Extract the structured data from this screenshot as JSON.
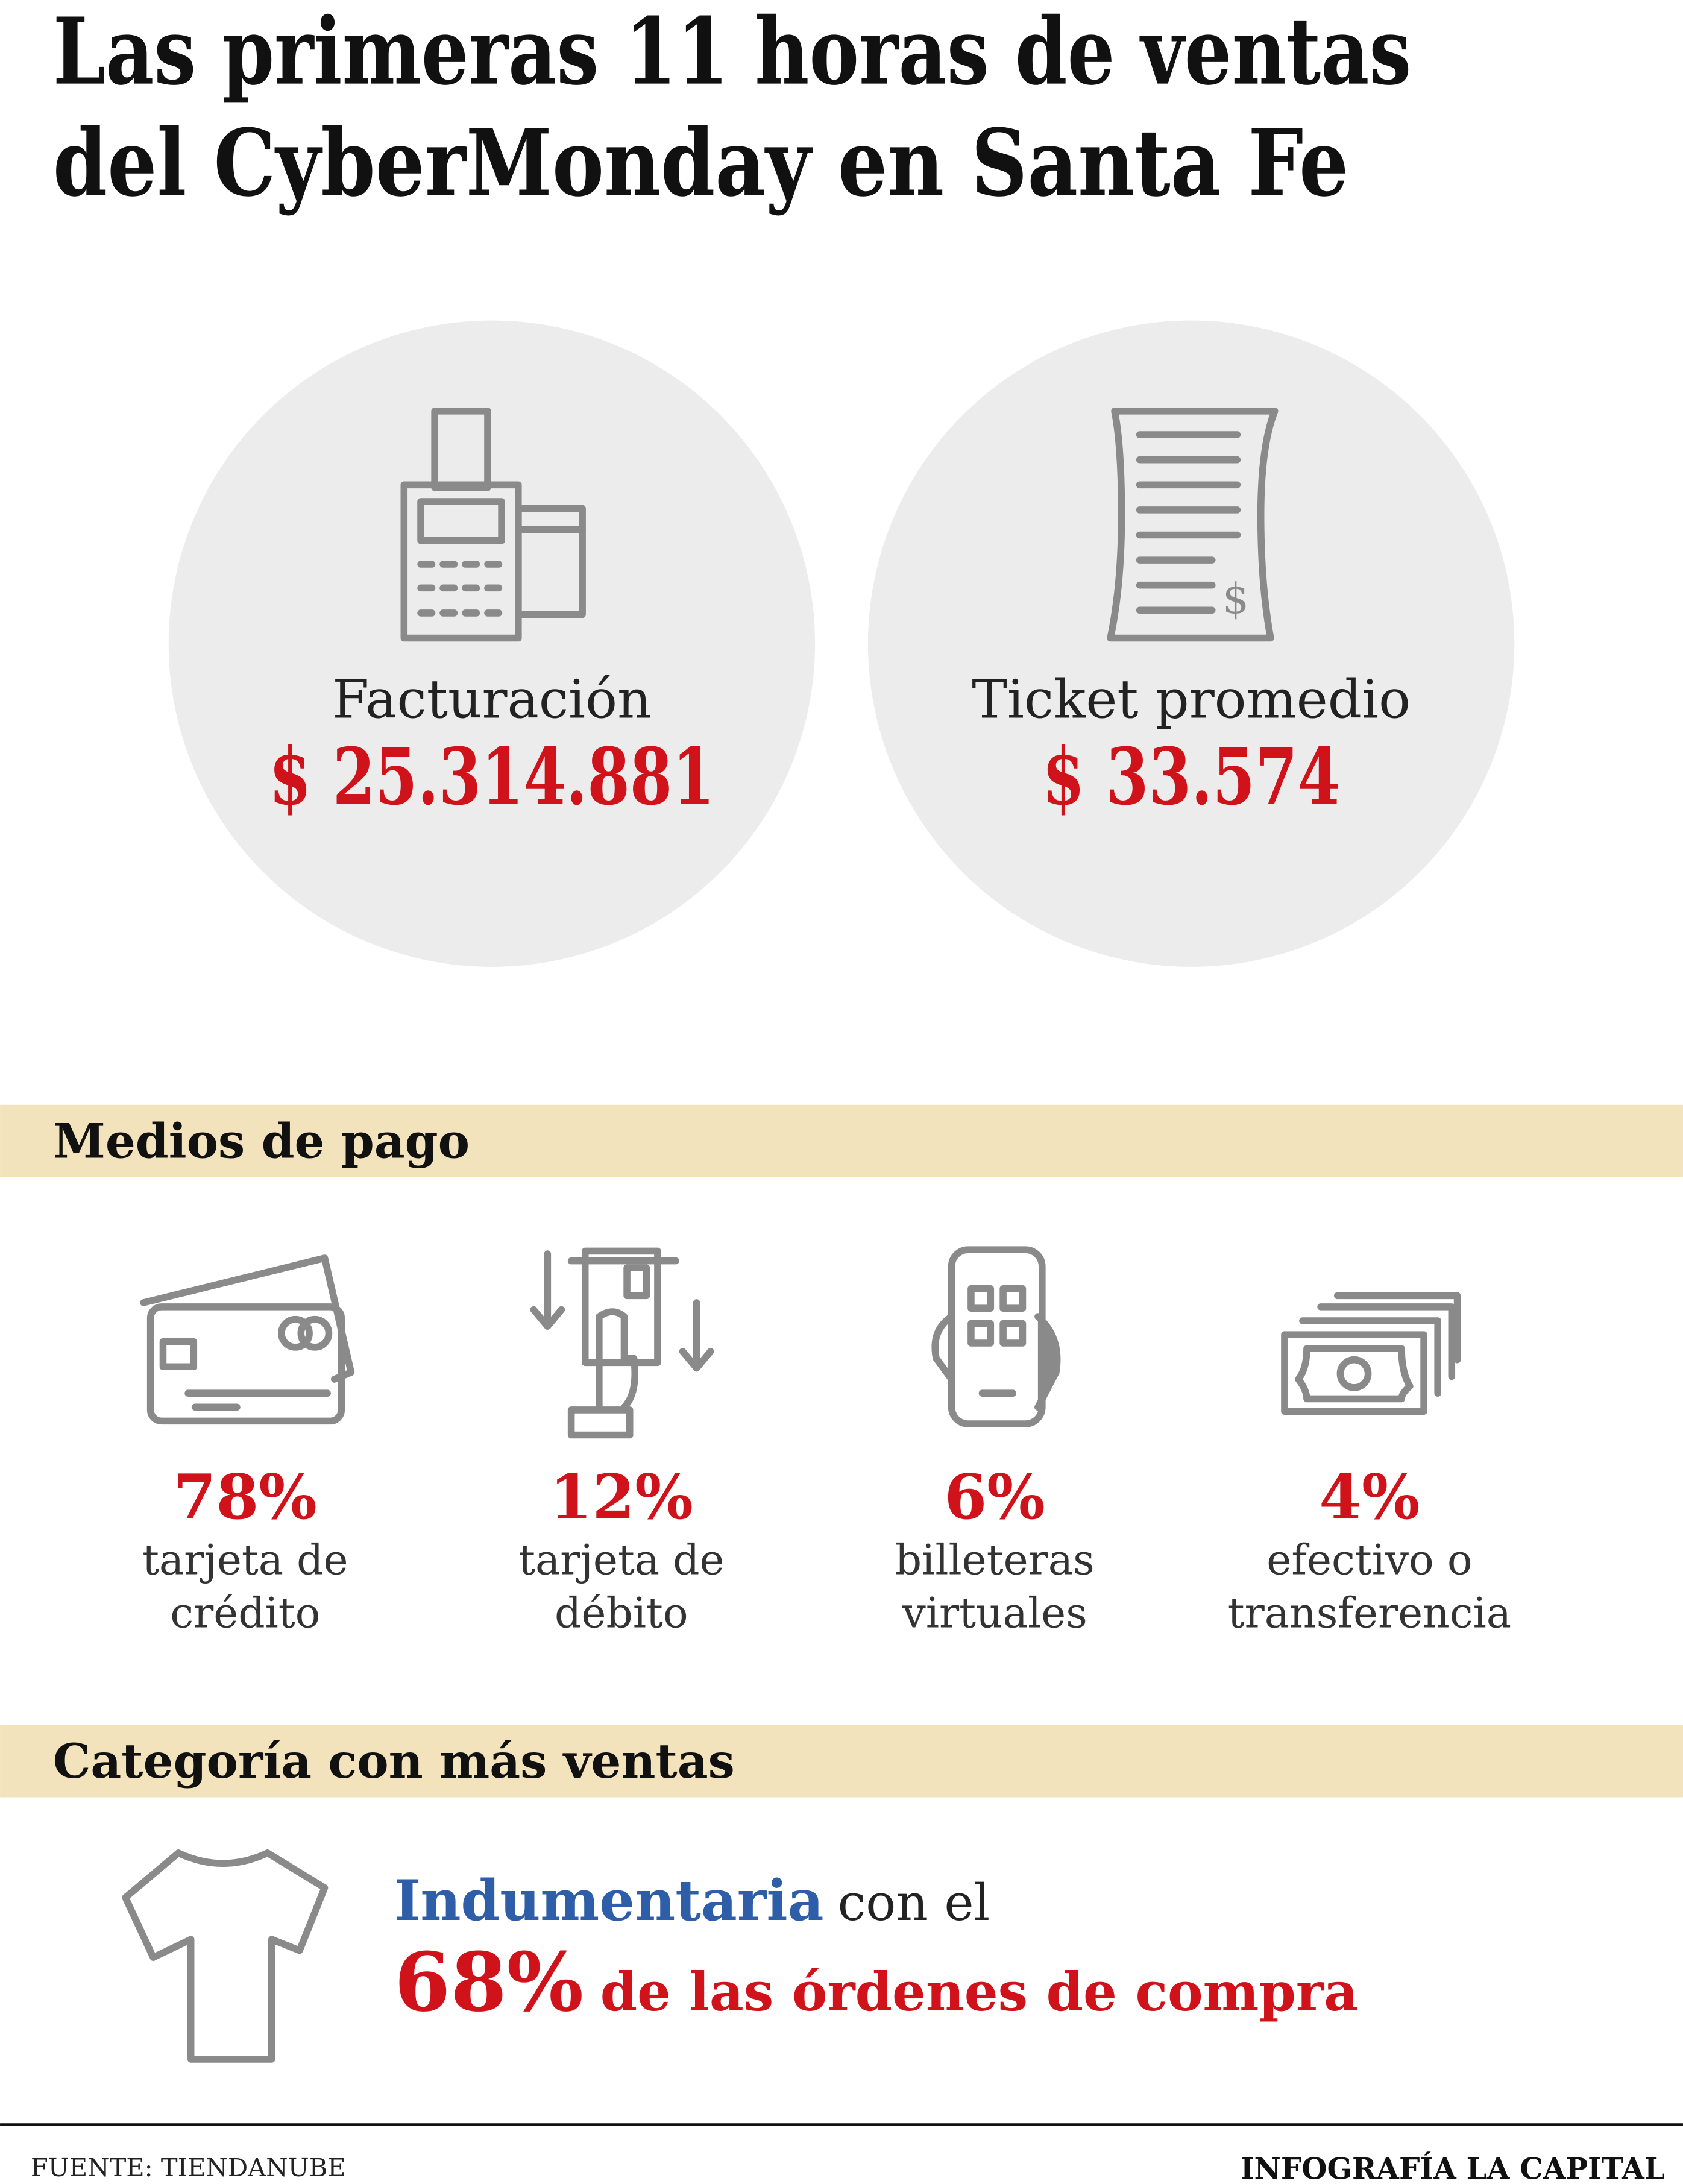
{
  "header": {
    "title_lines": [
      "Las primeras 11 horas de ventas",
      "del CyberMonday en Santa Fe"
    ]
  },
  "stats": [
    {
      "label": "Facturación",
      "value": "$ 25.314.881"
    },
    {
      "label": "Ticket promedio",
      "value": "$ 33.574"
    }
  ],
  "payments": {
    "heading": "Medios de pago",
    "items": [
      {
        "value": "78%",
        "label_lines": [
          "tarjeta de",
          "crédito"
        ]
      },
      {
        "value": "12%",
        "label_lines": [
          "tarjeta de",
          "débito"
        ]
      },
      {
        "value": "6%",
        "label_lines": [
          "billeteras",
          "virtuales"
        ]
      },
      {
        "value": "4%",
        "label_lines": [
          "efectivo o",
          "transferencia"
        ]
      }
    ]
  },
  "category": {
    "heading": "Categoría con más ventas",
    "name": "Indumentaria",
    "text1": "con el",
    "percent": "68%",
    "text2": "de las órdenes de compra"
  },
  "footer": {
    "source": "FUENTE: TIENDANUBE",
    "credit": "INFOGRAFÍA LA CAPITAL"
  }
}
